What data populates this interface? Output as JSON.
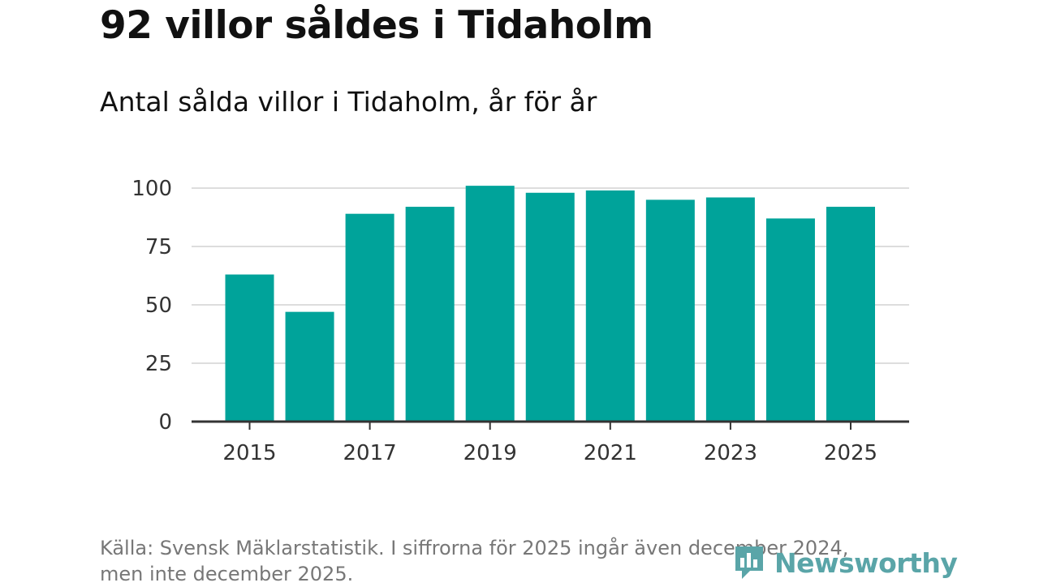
{
  "header": {
    "title": "92 villor såldes i Tidaholm",
    "subtitle": "Antal sålda villor i Tidaholm, år för år"
  },
  "footer": {
    "source_line1": "Källa: Svensk Mäklarstatistik. I siffrorna för 2025 ingår även december 2024,",
    "source_line2": "men inte december 2025.",
    "logo_text": "Newsworthy"
  },
  "colors": {
    "bar": "#00a39a",
    "grid": "#dddddd",
    "axis": "#333333",
    "logo": "#5aa5a8"
  },
  "chart_data": {
    "type": "bar",
    "title": "Antal sålda villor i Tidaholm, år för år",
    "xlabel": "",
    "ylabel": "",
    "categories": [
      "2015",
      "2016",
      "2017",
      "2018",
      "2019",
      "2020",
      "2021",
      "2022",
      "2023",
      "2024",
      "2025"
    ],
    "values": [
      63,
      47,
      89,
      92,
      101,
      98,
      99,
      95,
      96,
      87,
      92
    ],
    "x_tick_labels": [
      "2015",
      "2017",
      "2019",
      "2021",
      "2023",
      "2025"
    ],
    "y_ticks": [
      0,
      25,
      50,
      75,
      100
    ],
    "ylim": [
      0,
      105
    ],
    "grid": true,
    "legend": "none"
  }
}
